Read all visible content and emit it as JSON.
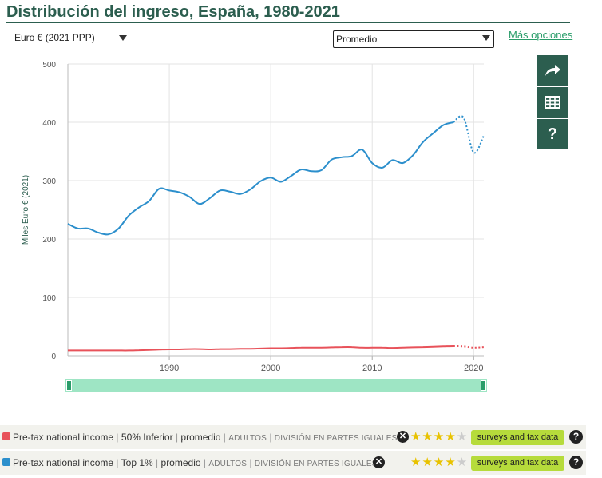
{
  "header": {
    "title": "Distribución del ingreso, España, 1980-2021",
    "more_options": "Más opciones"
  },
  "controls": {
    "currency": "Euro € (2021 PPP)",
    "measure": "Promedio"
  },
  "sidebar": {
    "share_icon": "share-arrow-icon",
    "table_icon": "table-grid-icon",
    "help_label": "?"
  },
  "colors": {
    "bottom50": "#e8525a",
    "top1": "#2c8fcc",
    "accent": "#2c5e4f"
  },
  "chart_data": {
    "type": "line",
    "ylabel": "Miles Euro € (2021)",
    "ylim": [
      0,
      500
    ],
    "xlim": [
      1980,
      2021
    ],
    "yticks": [
      "0",
      "100",
      "200",
      "300",
      "400",
      "500"
    ],
    "xticks": [
      "1990",
      "2000",
      "2010",
      "2020"
    ],
    "grid": true,
    "x": [
      1980,
      1981,
      1982,
      1983,
      1984,
      1985,
      1986,
      1987,
      1988,
      1989,
      1990,
      1991,
      1992,
      1993,
      1994,
      1995,
      1996,
      1997,
      1998,
      1999,
      2000,
      2001,
      2002,
      2003,
      2004,
      2005,
      2006,
      2007,
      2008,
      2009,
      2010,
      2011,
      2012,
      2013,
      2014,
      2015,
      2016,
      2017,
      2018,
      2019,
      2020,
      2021
    ],
    "estimated_from_year": 2018,
    "series": [
      {
        "key": "bottom50",
        "values": [
          9,
          9,
          9,
          9,
          9,
          9,
          9,
          9.5,
          10,
          10.5,
          11,
          11,
          11.5,
          11.5,
          11,
          11.5,
          11.5,
          12,
          12,
          12.5,
          13,
          13,
          13.5,
          14,
          14,
          14,
          14.5,
          15,
          15,
          14,
          14,
          14,
          13.5,
          14,
          14.5,
          15,
          15.5,
          16,
          16.5,
          16,
          14,
          15
        ]
      },
      {
        "key": "top1",
        "values": [
          226,
          218,
          218,
          211,
          208,
          218,
          240,
          254,
          265,
          286,
          283,
          280,
          272,
          260,
          270,
          283,
          281,
          277,
          285,
          299,
          305,
          298,
          308,
          319,
          316,
          318,
          336,
          340,
          342,
          353,
          330,
          322,
          335,
          330,
          343,
          366,
          381,
          395,
          400,
          408,
          348,
          377
        ]
      }
    ]
  },
  "legend": [
    {
      "color_key": "bottom50",
      "main": "Pre-tax national income",
      "group": "50% Inferior",
      "measure": "promedio",
      "population": "ADULTOS",
      "split": "DIVISIÓN EN PARTES IGUALES",
      "rating": 4,
      "source": "surveys and tax data",
      "help": "?"
    },
    {
      "color_key": "top1",
      "main": "Pre-tax national income",
      "group": "Top 1%",
      "measure": "promedio",
      "population": "ADULTOS",
      "split": "DIVISIÓN EN PARTES IGUALES",
      "rating": 4,
      "source": "surveys and tax data",
      "help": "?"
    }
  ]
}
